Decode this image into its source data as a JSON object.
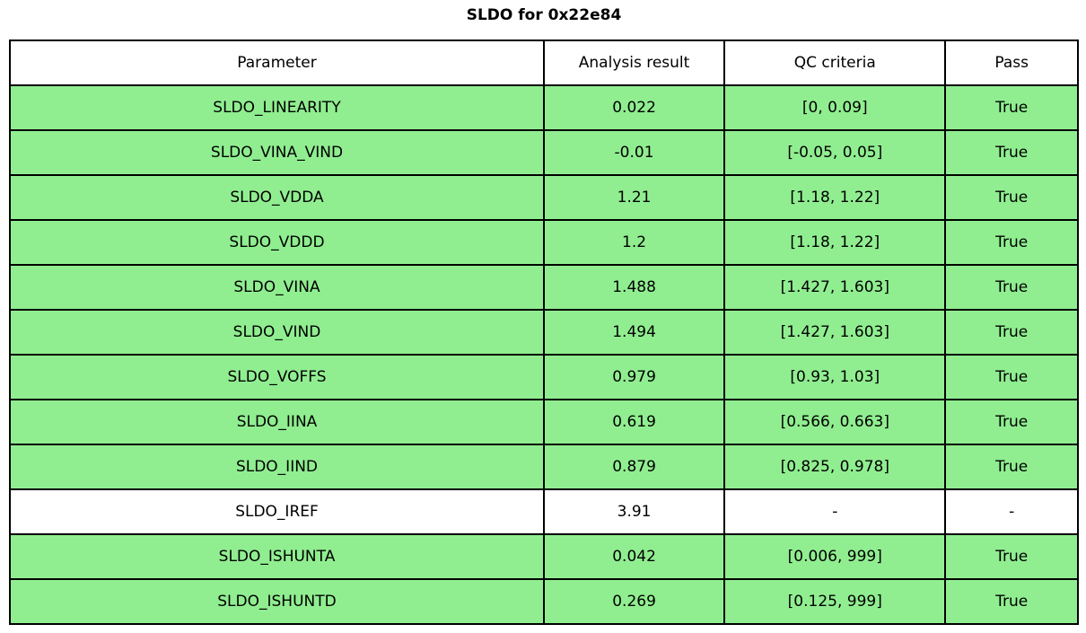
{
  "title": "SLDO for 0x22e84",
  "chart_data": {
    "type": "table",
    "title": "SLDO for 0x22e84",
    "columns": [
      "Parameter",
      "Analysis result",
      "QC criteria",
      "Pass"
    ],
    "rows": [
      [
        "SLDO_LINEARITY",
        "0.022",
        "[0, 0.09]",
        "True"
      ],
      [
        "SLDO_VINA_VIND",
        "-0.01",
        "[-0.05, 0.05]",
        "True"
      ],
      [
        "SLDO_VDDA",
        "1.21",
        "[1.18, 1.22]",
        "True"
      ],
      [
        "SLDO_VDDD",
        "1.2",
        "[1.18, 1.22]",
        "True"
      ],
      [
        "SLDO_VINA",
        "1.488",
        "[1.427, 1.603]",
        "True"
      ],
      [
        "SLDO_VIND",
        "1.494",
        "[1.427, 1.603]",
        "True"
      ],
      [
        "SLDO_VOFFS",
        "0.979",
        "[0.93, 1.03]",
        "True"
      ],
      [
        "SLDO_IINA",
        "0.619",
        "[0.566, 0.663]",
        "True"
      ],
      [
        "SLDO_IIND",
        "0.879",
        "[0.825, 0.978]",
        "True"
      ],
      [
        "SLDO_IREF",
        "3.91",
        "-",
        "-"
      ],
      [
        "SLDO_ISHUNTA",
        "0.042",
        "[0.006, 999]",
        "True"
      ],
      [
        "SLDO_ISHUNTD",
        "0.269",
        "[0.125, 999]",
        "True"
      ]
    ],
    "row_highlight": [
      true,
      true,
      true,
      true,
      true,
      true,
      true,
      true,
      true,
      false,
      true,
      true
    ],
    "highlight_color": "#90ee90",
    "neutral_color": "#ffffff",
    "border_color": "#000000",
    "header_background": "#ffffff"
  }
}
